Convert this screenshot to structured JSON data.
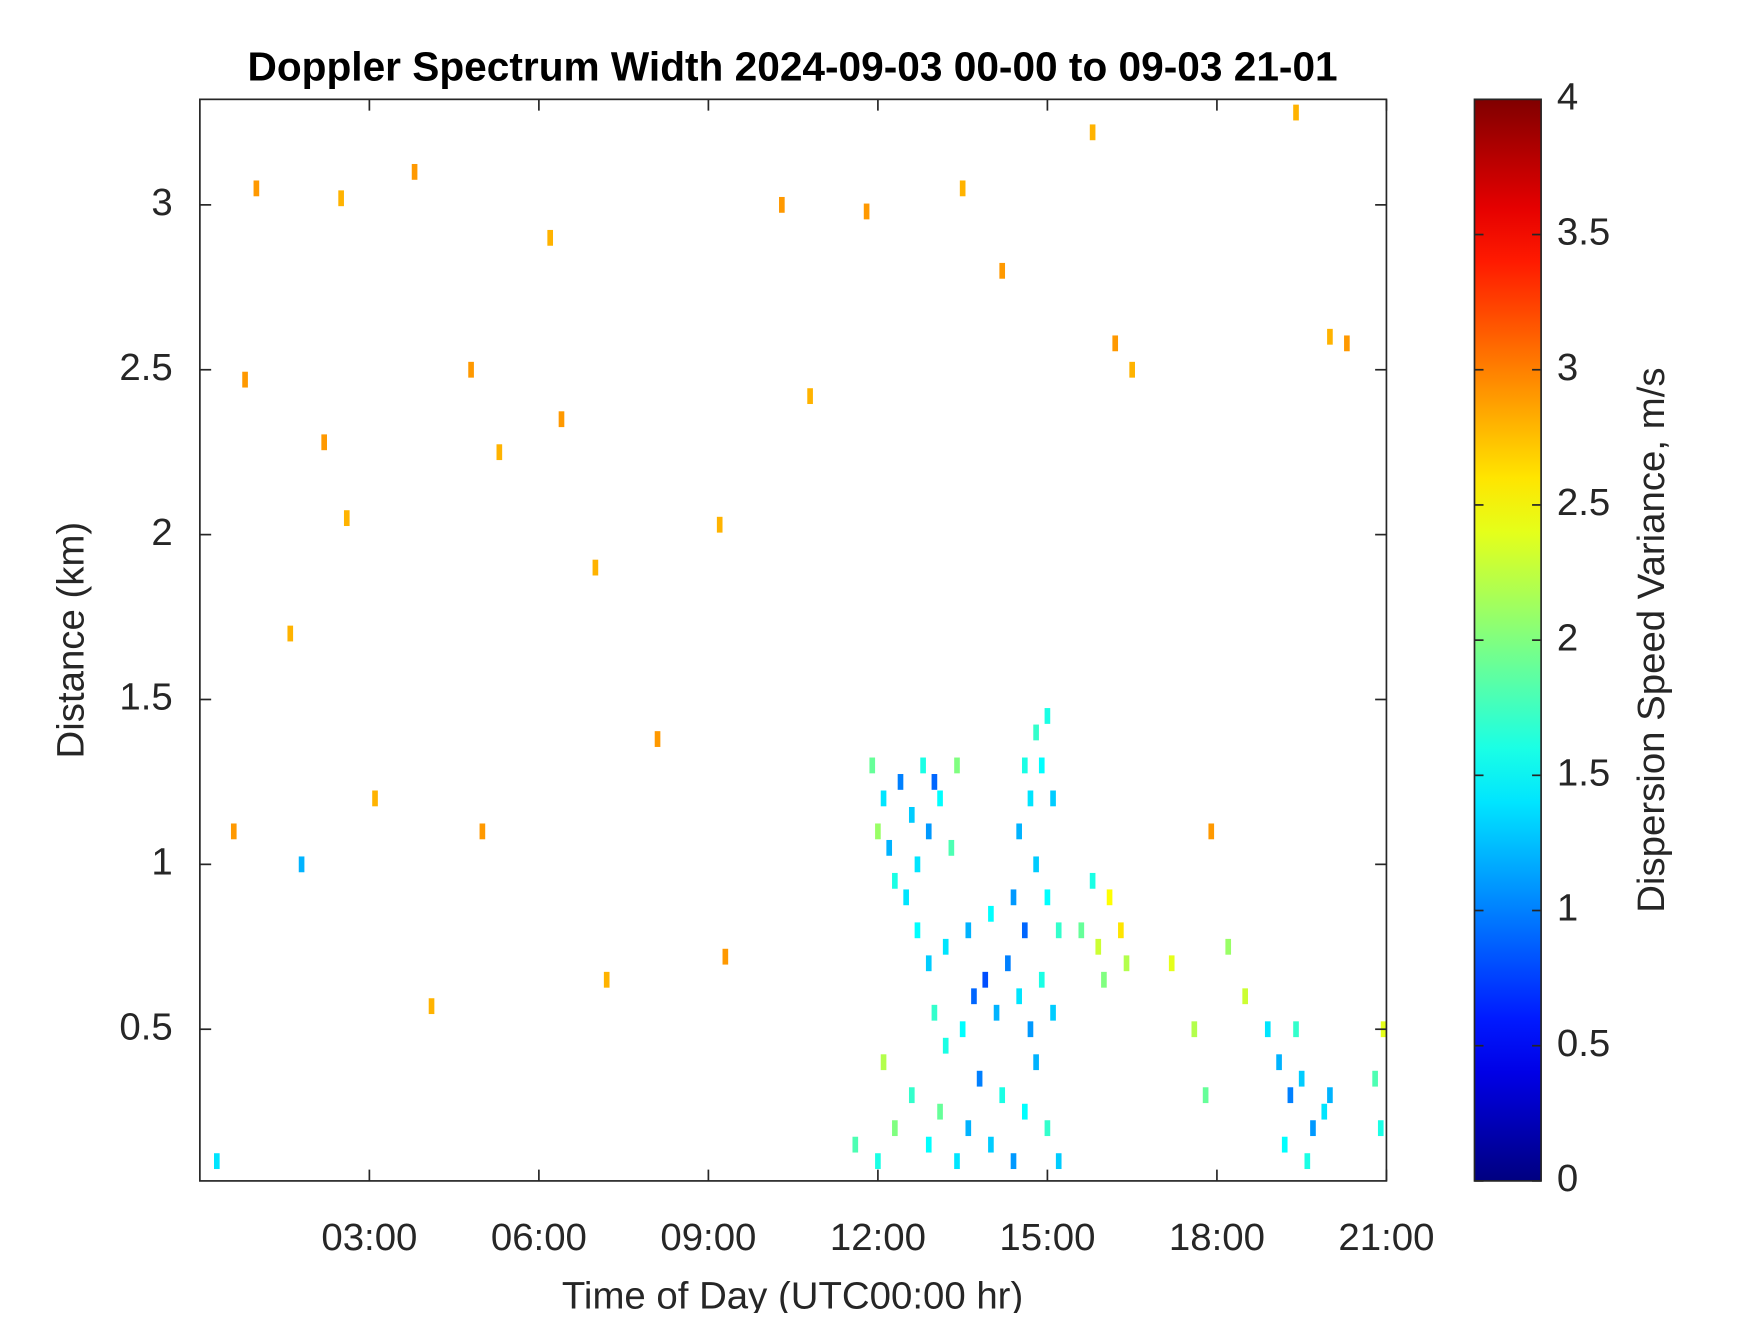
{
  "chart_data": {
    "type": "heatmap",
    "title": "Doppler Spectrum Width 2024-09-03 00-00 to 09-03 21-01",
    "xlabel": "Time of Day (UTC00:00 hr)",
    "ylabel": "Distance (km)",
    "colorbar_label": "Dispersion Speed Variance, m/s",
    "colormap": "jet",
    "xlim": [
      0,
      21
    ],
    "ylim": [
      0.04,
      3.32
    ],
    "clim": [
      0,
      4
    ],
    "xticks": [
      {
        "value": 3,
        "label": "03:00"
      },
      {
        "value": 6,
        "label": "06:00"
      },
      {
        "value": 9,
        "label": "09:00"
      },
      {
        "value": 12,
        "label": "12:00"
      },
      {
        "value": 15,
        "label": "15:00"
      },
      {
        "value": 18,
        "label": "18:00"
      },
      {
        "value": 21,
        "label": "21:00"
      }
    ],
    "yticks": [
      0.5,
      1,
      1.5,
      2,
      2.5,
      3
    ],
    "cticks": [
      0,
      0.5,
      1,
      1.5,
      2,
      2.5,
      3,
      3.5,
      4
    ],
    "x": [
      11.9,
      12.1,
      12.2,
      12.4,
      12.6,
      12.8,
      12.9,
      13.1,
      13.3,
      12.3,
      12.0,
      12.7,
      13.0,
      13.4,
      13.4,
      13.6,
      13.8,
      14.0,
      14.2,
      14.4,
      14.6,
      14.8,
      15.0,
      15.2,
      13.5,
      13.7,
      13.9,
      14.1,
      14.3,
      14.5,
      14.7,
      14.9,
      15.1,
      13.2,
      13.6,
      14.0,
      14.4,
      14.6,
      14.8,
      15.0,
      15.2,
      14.5,
      14.7,
      14.9,
      15.0,
      15.1,
      14.6,
      14.8,
      12.7,
      12.9,
      13.0,
      13.2,
      12.5,
      15.6,
      15.9,
      16.1,
      16.3,
      15.8,
      16.0,
      16.4,
      11.6,
      12.0,
      12.3,
      12.6,
      12.9,
      13.1,
      12.1,
      18.9,
      19.1,
      19.3,
      19.5,
      19.7,
      19.9,
      19.2,
      19.6,
      20.0,
      19.4,
      20.9,
      20.95,
      20.8,
      17.2,
      17.6,
      18.2,
      17.8,
      18.5,
      1.0,
      2.5,
      3.8,
      6.2,
      0.8,
      1.6,
      2.2,
      2.6,
      4.8,
      5.3,
      6.4,
      7.0,
      8.1,
      9.2,
      10.3,
      10.8,
      11.8,
      13.5,
      14.2,
      16.5,
      17.9,
      20.0,
      20.3,
      19.4,
      5.0,
      3.1,
      0.6,
      7.2,
      9.3,
      1.8,
      15.8,
      16.2,
      4.1,
      0.3
    ],
    "y": [
      1.3,
      1.2,
      1.05,
      1.25,
      1.15,
      1.3,
      1.1,
      1.2,
      1.05,
      0.95,
      1.1,
      1.0,
      1.25,
      1.3,
      0.1,
      0.2,
      0.35,
      0.15,
      0.3,
      0.1,
      0.25,
      0.4,
      0.2,
      0.1,
      0.5,
      0.6,
      0.65,
      0.55,
      0.7,
      0.6,
      0.5,
      0.65,
      0.55,
      0.75,
      0.8,
      0.85,
      0.9,
      0.8,
      1.0,
      0.9,
      0.8,
      1.1,
      1.2,
      1.3,
      1.45,
      1.2,
      1.3,
      1.4,
      0.8,
      0.7,
      0.55,
      0.45,
      0.9,
      0.8,
      0.75,
      0.9,
      0.8,
      0.95,
      0.65,
      0.7,
      0.15,
      0.1,
      0.2,
      0.3,
      0.15,
      0.25,
      0.4,
      0.5,
      0.4,
      0.3,
      0.35,
      0.2,
      0.25,
      0.15,
      0.1,
      0.3,
      0.5,
      0.2,
      0.5,
      0.35,
      0.7,
      0.5,
      0.75,
      0.3,
      0.6,
      3.05,
      3.02,
      3.1,
      2.9,
      2.47,
      1.7,
      2.28,
      2.05,
      2.5,
      2.25,
      2.35,
      1.9,
      1.38,
      2.03,
      3.0,
      2.42,
      2.98,
      3.05,
      2.8,
      2.5,
      1.1,
      2.6,
      2.58,
      3.28,
      1.1,
      1.2,
      1.1,
      0.65,
      0.72,
      1.0,
      3.22,
      2.58,
      0.57,
      0.1
    ],
    "values": [
      1.9,
      1.4,
      1.2,
      1.0,
      1.3,
      1.6,
      1.1,
      1.5,
      1.8,
      1.6,
      2.1,
      1.4,
      0.9,
      2.0,
      1.4,
      1.2,
      1.0,
      1.3,
      1.6,
      1.1,
      1.5,
      1.2,
      1.7,
      1.3,
      1.5,
      0.9,
      0.8,
      1.2,
      1.0,
      1.4,
      1.1,
      1.6,
      1.3,
      1.4,
      1.2,
      1.5,
      1.1,
      0.9,
      1.3,
      1.5,
      1.7,
      1.2,
      1.4,
      1.5,
      1.6,
      1.3,
      1.6,
      1.7,
      1.5,
      1.3,
      1.7,
      1.6,
      1.4,
      1.9,
      2.3,
      2.5,
      2.6,
      1.6,
      2.0,
      2.2,
      1.8,
      1.6,
      2.0,
      1.7,
      1.5,
      1.9,
      2.2,
      1.4,
      1.2,
      1.0,
      1.3,
      1.1,
      1.4,
      1.5,
      1.6,
      1.2,
      1.7,
      1.6,
      2.4,
      1.8,
      2.4,
      2.2,
      2.1,
      1.9,
      2.3,
      2.9,
      2.8,
      2.9,
      2.8,
      2.9,
      2.8,
      2.9,
      2.8,
      2.9,
      2.8,
      2.9,
      2.8,
      2.9,
      2.8,
      2.9,
      2.8,
      2.9,
      2.8,
      2.9,
      2.8,
      2.9,
      2.8,
      2.9,
      2.8,
      2.9,
      2.8,
      2.9,
      2.8,
      2.9,
      1.2,
      2.8,
      2.9,
      2.8,
      1.4
    ]
  }
}
